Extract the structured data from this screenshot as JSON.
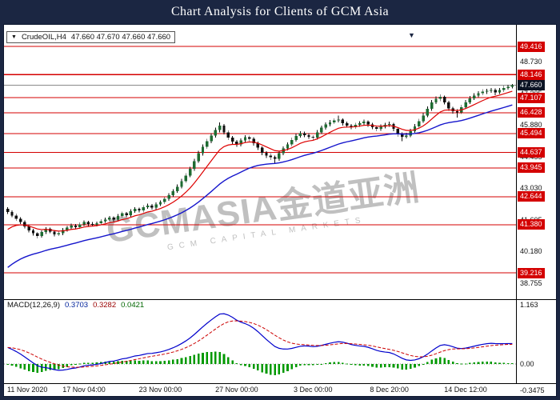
{
  "window": {
    "title": "Chart Analysis for Clients of GCM Asia",
    "marker_glyph": "▼",
    "colors": {
      "titlebar_bg": "#1b2642",
      "titlebar_fg": "#ffffff",
      "chart_bg": "#ffffff",
      "sr_line": "#d40000",
      "sr_label_bg": "#d40000",
      "sr_label_fg": "#ffffff",
      "current_label_bg": "#0c1424",
      "current_label_fg": "#ffffff",
      "bull": "#1e6b32",
      "bear": "#101010",
      "wick": "#101010",
      "ma_fast": "#dd0000",
      "ma_slow": "#1515cc",
      "macd_line": "#0000cc",
      "macd_signal": "#cc0000",
      "macd_hist": "#009900",
      "current_line": "#8a8a8a",
      "divider": "#000000"
    }
  },
  "info_bar": {
    "collapse_icon": "▼",
    "symbol": "CrudeOIL,H4",
    "ohlc": "47.660 47.670 47.660 47.660"
  },
  "watermark": {
    "main": "GCMASIA金道亚洲",
    "sub": "GCM CAPITAL MARKETS"
  },
  "chart_data": {
    "type": "candlestick",
    "symbol": "CrudeOIL",
    "timeframe": "H4",
    "title": "Chart Analysis for Clients of GCM Asia",
    "current_price": "47.660",
    "candle_format": "[open, high, low, close]",
    "price_axis": {
      "min": 38.4,
      "max": 49.65,
      "plain_labels": [
        "48.730",
        "47.305",
        "45.880",
        "44.455",
        "43.030",
        "41.605",
        "40.180",
        "38.755"
      ]
    },
    "sr_levels": [
      "49.416",
      "48.146",
      "47.107",
      "46.428",
      "45.494",
      "44.637",
      "43.945",
      "42.644",
      "41.380",
      "39.216"
    ],
    "x_labels": [
      {
        "index": 0,
        "text": "11 Nov 2020"
      },
      {
        "index": 18,
        "text": "17 Nov 04:00"
      },
      {
        "index": 36,
        "text": "23 Nov 00:00"
      },
      {
        "index": 54,
        "text": "27 Nov 00:00"
      },
      {
        "index": 72,
        "text": "3 Dec 00:00"
      },
      {
        "index": 90,
        "text": "8 Dec 20:00"
      },
      {
        "index": 108,
        "text": "14 Dec 12:00"
      }
    ],
    "candles": [
      [
        42.1,
        42.18,
        41.86,
        41.95
      ],
      [
        41.95,
        42.03,
        41.72,
        41.8
      ],
      [
        41.8,
        41.88,
        41.56,
        41.65
      ],
      [
        41.65,
        41.73,
        41.41,
        41.5
      ],
      [
        41.5,
        41.57,
        41.21,
        41.3
      ],
      [
        41.3,
        41.38,
        41.03,
        41.12
      ],
      [
        41.12,
        41.2,
        40.9,
        41.0
      ],
      [
        41.0,
        41.06,
        40.76,
        40.88
      ],
      [
        40.88,
        41.13,
        40.8,
        41.05
      ],
      [
        41.05,
        41.28,
        40.97,
        41.2
      ],
      [
        41.2,
        41.26,
        41.0,
        41.08
      ],
      [
        41.08,
        41.14,
        40.86,
        40.95
      ],
      [
        40.95,
        41.08,
        40.87,
        41.0
      ],
      [
        41.0,
        41.23,
        40.92,
        41.15
      ],
      [
        41.15,
        41.33,
        41.07,
        41.25
      ],
      [
        41.25,
        41.43,
        41.17,
        41.35
      ],
      [
        41.35,
        41.41,
        41.19,
        41.28
      ],
      [
        41.28,
        41.48,
        41.2,
        41.4
      ],
      [
        41.4,
        41.58,
        41.32,
        41.5
      ],
      [
        41.5,
        41.56,
        41.33,
        41.42
      ],
      [
        41.42,
        41.5,
        41.3,
        41.38
      ],
      [
        41.38,
        41.53,
        41.3,
        41.45
      ],
      [
        41.45,
        41.63,
        41.37,
        41.55
      ],
      [
        41.55,
        41.7,
        41.47,
        41.62
      ],
      [
        41.62,
        41.78,
        41.54,
        41.7
      ],
      [
        41.7,
        41.76,
        41.53,
        41.62
      ],
      [
        41.62,
        41.86,
        41.54,
        41.78
      ],
      [
        41.78,
        41.98,
        41.7,
        41.9
      ],
      [
        41.9,
        41.96,
        41.73,
        41.82
      ],
      [
        41.82,
        42.08,
        41.74,
        42.0
      ],
      [
        42.0,
        42.18,
        41.92,
        42.1
      ],
      [
        42.1,
        42.16,
        41.93,
        42.02
      ],
      [
        42.02,
        42.26,
        41.94,
        42.18
      ],
      [
        42.18,
        42.33,
        42.1,
        42.25
      ],
      [
        42.25,
        42.31,
        42.06,
        42.15
      ],
      [
        42.15,
        42.38,
        42.07,
        42.3
      ],
      [
        42.3,
        42.48,
        42.22,
        42.4
      ],
      [
        42.4,
        42.63,
        42.32,
        42.55
      ],
      [
        42.55,
        42.8,
        42.47,
        42.72
      ],
      [
        42.72,
        42.98,
        42.64,
        42.9
      ],
      [
        42.9,
        43.2,
        42.82,
        43.1
      ],
      [
        43.1,
        43.45,
        43.02,
        43.35
      ],
      [
        43.35,
        43.7,
        43.27,
        43.6
      ],
      [
        43.6,
        44.0,
        43.52,
        43.9
      ],
      [
        43.9,
        44.35,
        43.82,
        44.25
      ],
      [
        44.25,
        44.72,
        44.17,
        44.6
      ],
      [
        44.6,
        45.0,
        44.5,
        44.9
      ],
      [
        44.9,
        45.26,
        44.8,
        45.15
      ],
      [
        45.15,
        45.5,
        45.05,
        45.4
      ],
      [
        45.4,
        45.76,
        45.3,
        45.65
      ],
      [
        45.65,
        46.0,
        45.55,
        45.85
      ],
      [
        45.85,
        45.92,
        45.45,
        45.55
      ],
      [
        45.55,
        45.63,
        45.2,
        45.3
      ],
      [
        45.3,
        45.38,
        45.02,
        45.12
      ],
      [
        45.12,
        45.2,
        44.9,
        45.0
      ],
      [
        45.0,
        45.28,
        44.92,
        45.18
      ],
      [
        45.18,
        45.42,
        45.1,
        45.32
      ],
      [
        45.32,
        45.4,
        45.15,
        45.25
      ],
      [
        45.25,
        45.32,
        44.95,
        45.05
      ],
      [
        45.05,
        45.12,
        44.75,
        44.85
      ],
      [
        44.85,
        44.92,
        44.52,
        44.62
      ],
      [
        44.62,
        44.7,
        44.38,
        44.5
      ],
      [
        44.5,
        44.6,
        44.3,
        44.42
      ],
      [
        44.42,
        44.5,
        44.15,
        44.35
      ],
      [
        44.35,
        44.7,
        44.27,
        44.6
      ],
      [
        44.6,
        44.92,
        44.52,
        44.82
      ],
      [
        44.82,
        45.1,
        44.74,
        45.0
      ],
      [
        45.0,
        45.3,
        44.92,
        45.2
      ],
      [
        45.2,
        45.48,
        45.12,
        45.38
      ],
      [
        45.38,
        45.6,
        45.3,
        45.5
      ],
      [
        45.5,
        45.57,
        45.32,
        45.42
      ],
      [
        45.42,
        45.5,
        45.25,
        45.35
      ],
      [
        45.35,
        45.42,
        45.2,
        45.3
      ],
      [
        45.3,
        45.65,
        45.22,
        45.55
      ],
      [
        45.55,
        45.85,
        45.47,
        45.75
      ],
      [
        45.75,
        46.0,
        45.67,
        45.9
      ],
      [
        45.9,
        46.1,
        45.82,
        46.0
      ],
      [
        46.0,
        46.18,
        45.92,
        46.08
      ],
      [
        46.08,
        46.3,
        46.0,
        46.12
      ],
      [
        46.12,
        46.18,
        45.85,
        45.95
      ],
      [
        45.95,
        46.02,
        45.75,
        45.85
      ],
      [
        45.85,
        45.92,
        45.68,
        45.78
      ],
      [
        45.78,
        45.98,
        45.7,
        45.88
      ],
      [
        45.88,
        46.05,
        45.8,
        45.95
      ],
      [
        45.95,
        46.12,
        45.87,
        46.02
      ],
      [
        46.02,
        46.08,
        45.8,
        45.9
      ],
      [
        45.9,
        45.97,
        45.68,
        45.78
      ],
      [
        45.78,
        45.85,
        45.6,
        45.7
      ],
      [
        45.7,
        45.9,
        45.62,
        45.8
      ],
      [
        45.8,
        45.98,
        45.72,
        45.88
      ],
      [
        45.88,
        46.02,
        45.8,
        45.92
      ],
      [
        45.92,
        45.98,
        45.6,
        45.7
      ],
      [
        45.7,
        45.76,
        45.35,
        45.48
      ],
      [
        45.48,
        45.55,
        45.15,
        45.35
      ],
      [
        45.35,
        45.52,
        45.27,
        45.4
      ],
      [
        45.4,
        45.7,
        45.32,
        45.6
      ],
      [
        45.6,
        45.92,
        45.52,
        45.82
      ],
      [
        45.82,
        46.15,
        45.74,
        46.05
      ],
      [
        46.05,
        46.42,
        45.97,
        46.3
      ],
      [
        46.3,
        46.72,
        46.22,
        46.6
      ],
      [
        46.6,
        47.0,
        46.52,
        46.9
      ],
      [
        46.9,
        47.16,
        46.82,
        47.05
      ],
      [
        47.05,
        47.25,
        46.95,
        47.15
      ],
      [
        47.15,
        47.2,
        46.8,
        46.9
      ],
      [
        46.9,
        46.96,
        46.52,
        46.62
      ],
      [
        46.62,
        46.7,
        46.38,
        46.5
      ],
      [
        46.5,
        46.58,
        46.2,
        46.45
      ],
      [
        46.45,
        46.78,
        46.37,
        46.68
      ],
      [
        46.68,
        47.0,
        46.6,
        46.9
      ],
      [
        46.9,
        47.18,
        46.82,
        47.08
      ],
      [
        47.08,
        47.3,
        47.0,
        47.2
      ],
      [
        47.2,
        47.4,
        47.12,
        47.3
      ],
      [
        47.3,
        47.48,
        47.22,
        47.38
      ],
      [
        47.38,
        47.5,
        47.28,
        47.42
      ],
      [
        47.42,
        47.54,
        47.32,
        47.46
      ],
      [
        47.46,
        47.52,
        47.22,
        47.35
      ],
      [
        47.35,
        47.55,
        47.27,
        47.45
      ],
      [
        47.45,
        47.65,
        47.37,
        47.55
      ],
      [
        47.55,
        47.68,
        47.47,
        47.6
      ],
      [
        47.6,
        47.72,
        47.52,
        47.66
      ]
    ],
    "indicators": {
      "moving_averages": [
        {
          "name": "fast-ma",
          "color": "#dd0000"
        },
        {
          "name": "slow-ma",
          "color": "#1515cc"
        }
      ],
      "macd": {
        "label": "MACD(12,26,9)",
        "value_main": "0.3703",
        "value_signal": "0.3282",
        "value_hist": "0.0421",
        "fast": 12,
        "slow": 26,
        "signal": 9,
        "scale_top": "1.163",
        "scale_zero": "0.00",
        "scale_bottom": "-0.3475"
      }
    }
  }
}
